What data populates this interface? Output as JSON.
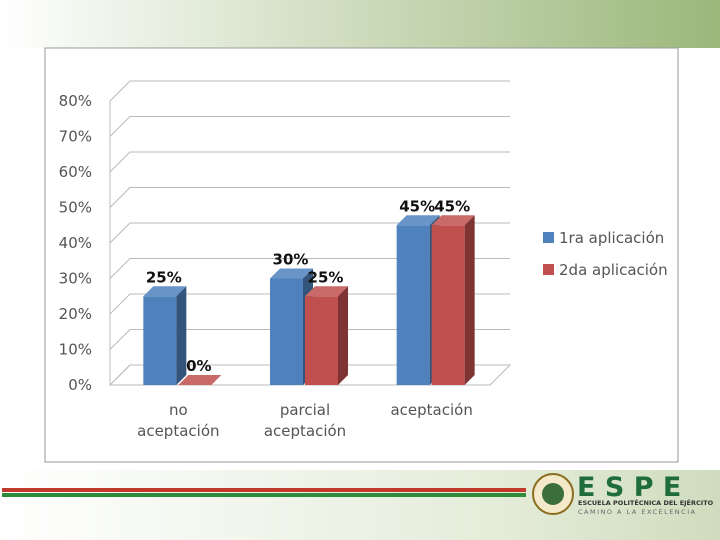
{
  "chart_data": {
    "type": "bar3d",
    "categories": [
      "no aceptación",
      "parcial aceptación",
      "aceptación"
    ],
    "series": [
      {
        "name": "1ra aplicación",
        "color": "#4f81bd",
        "values": [
          25,
          30,
          45
        ],
        "value_labels": [
          "25%",
          "30%",
          "45%"
        ]
      },
      {
        "name": "2da aplicación",
        "color": "#c0504d",
        "values": [
          0,
          25,
          45
        ],
        "value_labels": [
          "0%",
          "25%",
          "45%"
        ]
      }
    ],
    "ylim": [
      0,
      80
    ],
    "yticks": [
      {
        "value": 0,
        "label": "0%"
      },
      {
        "value": 10,
        "label": "10%"
      },
      {
        "value": 20,
        "label": "20%"
      },
      {
        "value": 30,
        "label": "30%"
      },
      {
        "value": 40,
        "label": "40%"
      },
      {
        "value": 50,
        "label": "50%"
      },
      {
        "value": 60,
        "label": "60%"
      },
      {
        "value": 70,
        "label": "70%"
      },
      {
        "value": 80,
        "label": "80%"
      }
    ],
    "grid": true,
    "legend": "right"
  },
  "logo": {
    "name": "E S P E",
    "line1": "ESCUELA POLITÉCNICA DEL EJÉRCITO",
    "line2": "CAMINO A LA EXCELENCIA"
  }
}
